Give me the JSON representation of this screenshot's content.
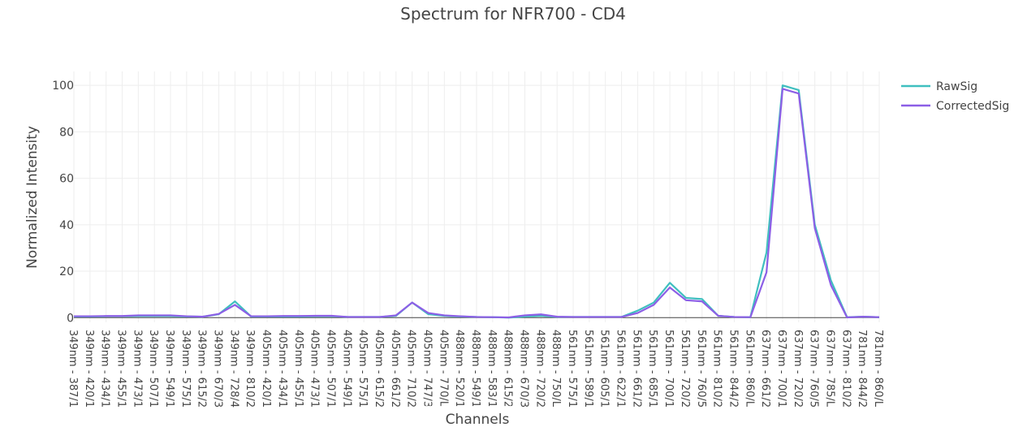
{
  "chart_data": {
    "type": "line",
    "title": "Spectrum for NFR700 - CD4",
    "xlabel": "Channels",
    "ylabel": "Normalized Intensity",
    "ylim": [
      -2,
      106
    ],
    "yticks": [
      0,
      20,
      40,
      60,
      80,
      100
    ],
    "grid": true,
    "legend_position": "top-right",
    "categories": [
      "349nm - 387/1",
      "349nm - 420/1",
      "349nm - 434/1",
      "349nm - 455/1",
      "349nm - 473/1",
      "349nm - 507/1",
      "349nm - 549/1",
      "349nm - 575/1",
      "349nm - 615/2",
      "349nm - 670/3",
      "349nm - 728/4",
      "349nm - 810/2",
      "405nm - 420/1",
      "405nm - 434/1",
      "405nm - 455/1",
      "405nm - 473/1",
      "405nm - 507/1",
      "405nm - 549/1",
      "405nm - 575/1",
      "405nm - 615/2",
      "405nm - 661/2",
      "405nm - 710/2",
      "405nm - 747/3",
      "405nm - 770/L",
      "488nm - 520/1",
      "488nm - 549/1",
      "488nm - 583/1",
      "488nm - 615/2",
      "488nm - 670/3",
      "488nm - 720/2",
      "488nm - 750/L",
      "561nm - 575/1",
      "561nm - 589/1",
      "561nm - 605/1",
      "561nm - 622/1",
      "561nm - 661/2",
      "561nm - 685/1",
      "561nm - 700/1",
      "561nm - 720/2",
      "561nm - 760/5",
      "561nm - 810/2",
      "561nm - 844/2",
      "561nm - 860/L",
      "637nm - 661/2",
      "637nm - 700/1",
      "637nm - 720/2",
      "637nm - 760/5",
      "637nm - 785/L",
      "637nm - 810/2",
      "781nm - 844/2",
      "781nm - 860/L"
    ],
    "series": [
      {
        "name": "RawSig",
        "color": "#3fbfbf",
        "values": [
          0.5,
          0.5,
          0.6,
          0.6,
          0.7,
          0.7,
          0.7,
          0.5,
          0.4,
          1.5,
          7.0,
          0.5,
          0.5,
          0.5,
          0.5,
          0.6,
          0.6,
          0.3,
          0.3,
          0.3,
          0.8,
          6.5,
          1.5,
          0.8,
          0.5,
          0.3,
          0.2,
          0.0,
          0.5,
          0.8,
          0.3,
          0.3,
          0.3,
          0.3,
          0.3,
          3.0,
          6.5,
          15.0,
          8.5,
          8.0,
          0.8,
          0.3,
          0.2,
          28.0,
          100.0,
          98.0,
          40.0,
          16.0,
          0.2,
          0.4,
          0.2
        ]
      },
      {
        "name": "CorrectedSig",
        "color": "#8c5fe6",
        "values": [
          0.6,
          0.6,
          0.7,
          0.7,
          1.0,
          1.0,
          1.0,
          0.6,
          0.4,
          1.6,
          5.5,
          0.6,
          0.6,
          0.7,
          0.7,
          0.8,
          0.8,
          0.3,
          0.3,
          0.3,
          1.0,
          6.5,
          2.0,
          1.0,
          0.6,
          0.3,
          0.2,
          0.1,
          1.0,
          1.4,
          0.4,
          0.3,
          0.3,
          0.3,
          0.3,
          2.0,
          5.5,
          13.0,
          7.5,
          7.0,
          0.8,
          0.3,
          0.2,
          19.5,
          98.5,
          96.5,
          38.5,
          14.0,
          0.1,
          0.4,
          0.2
        ]
      }
    ]
  }
}
